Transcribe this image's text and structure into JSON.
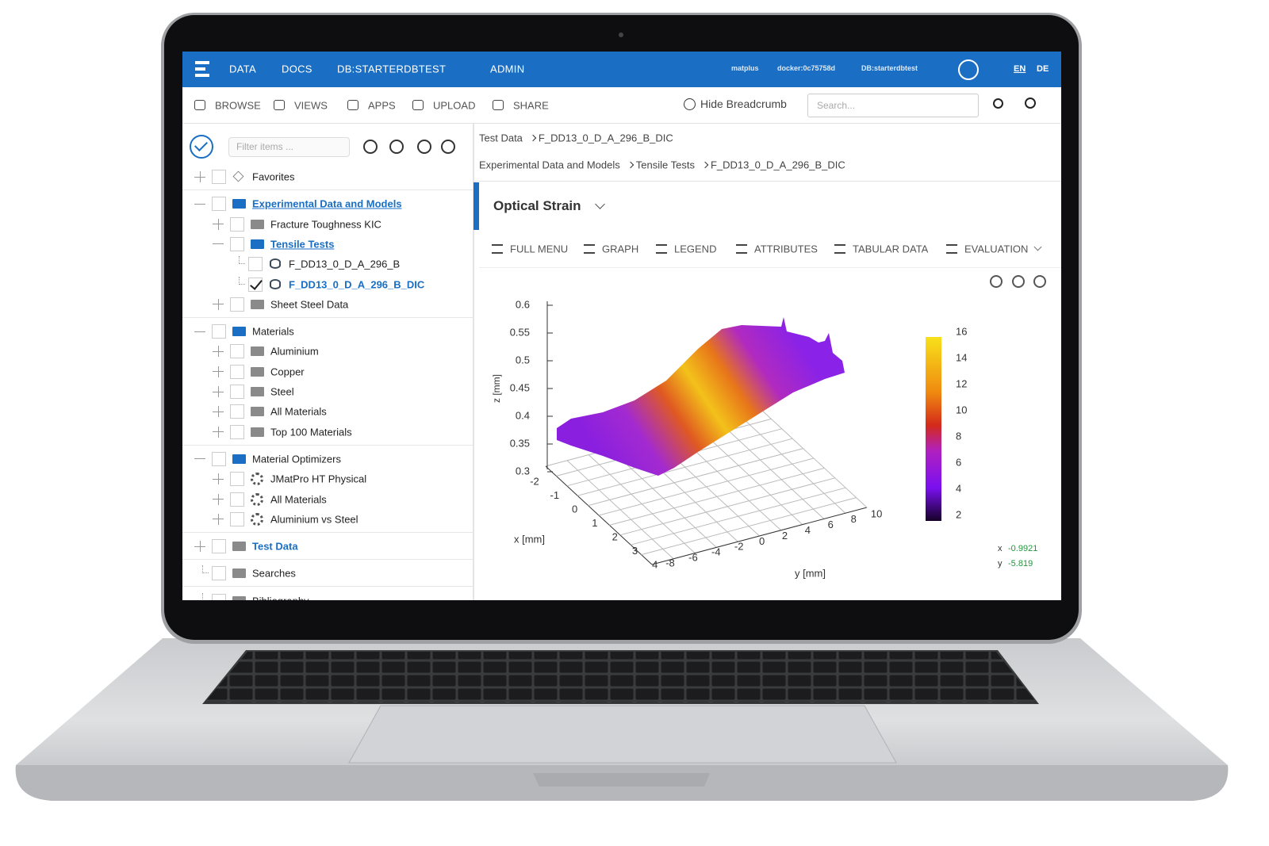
{
  "nav": {
    "items": [
      "DATA",
      "DOCS",
      "DB:STARTERDBTEST",
      "ADMIN"
    ],
    "info": [
      "matplus",
      "docker:0c75758d",
      "DB:starterdbtest"
    ],
    "langs": [
      "EN",
      "DE"
    ]
  },
  "toolbar": {
    "items": [
      "BROWSE",
      "VIEWS",
      "APPS",
      "UPLOAD",
      "SHARE"
    ],
    "hide_breadcrumb": "Hide Breadcrumb",
    "search_placeholder": "Search..."
  },
  "sidebar": {
    "filter_placeholder": "Filter items ...",
    "groups": [
      [
        {
          "label": "Favorites",
          "depth": 0,
          "icon": "star",
          "toggle": "collapsed"
        }
      ],
      [
        {
          "label": "Experimental Data and Models",
          "depth": 0,
          "icon": "folder-open",
          "toggle": "expanded",
          "style": "link"
        },
        {
          "label": "Fracture Toughness KIC",
          "depth": 1,
          "icon": "folder",
          "toggle": "collapsed"
        },
        {
          "label": "Tensile Tests",
          "depth": 1,
          "icon": "folder-open",
          "toggle": "expanded",
          "style": "link"
        },
        {
          "label": "F_DD13_0_D_A_296_B",
          "depth": 2,
          "icon": "dataset",
          "toggle": "none"
        },
        {
          "label": "F_DD13_0_D_A_296_B_DIC",
          "depth": 2,
          "icon": "dataset",
          "toggle": "none",
          "style": "selected",
          "checked": true
        },
        {
          "label": "Sheet Steel Data",
          "depth": 1,
          "icon": "folder",
          "toggle": "collapsed"
        }
      ],
      [
        {
          "label": "Materials",
          "depth": 0,
          "icon": "folder-open",
          "toggle": "expanded"
        },
        {
          "label": "Aluminium",
          "depth": 1,
          "icon": "folder",
          "toggle": "collapsed"
        },
        {
          "label": "Copper",
          "depth": 1,
          "icon": "folder",
          "toggle": "collapsed"
        },
        {
          "label": "Steel",
          "depth": 1,
          "icon": "folder",
          "toggle": "collapsed"
        },
        {
          "label": "All Materials",
          "depth": 1,
          "icon": "folder",
          "toggle": "collapsed"
        },
        {
          "label": "Top 100 Materials",
          "depth": 1,
          "icon": "folder",
          "toggle": "collapsed"
        }
      ],
      [
        {
          "label": "Material Optimizers",
          "depth": 0,
          "icon": "folder-open",
          "toggle": "expanded"
        },
        {
          "label": "JMatPro HT Physical",
          "depth": 1,
          "icon": "app",
          "toggle": "collapsed"
        },
        {
          "label": "All Materials",
          "depth": 1,
          "icon": "app",
          "toggle": "collapsed"
        },
        {
          "label": "Aluminium vs Steel",
          "depth": 1,
          "icon": "app",
          "toggle": "collapsed"
        }
      ],
      [
        {
          "label": "Test Data",
          "depth": 0,
          "icon": "folder",
          "toggle": "collapsed",
          "style": "link-plain"
        }
      ],
      [
        {
          "label": "Searches",
          "depth": 0,
          "icon": "folder",
          "toggle": "none"
        }
      ],
      [
        {
          "label": "Bibliography",
          "depth": 0,
          "icon": "folder",
          "toggle": "none"
        }
      ]
    ]
  },
  "breadcrumbs": [
    [
      "Test Data",
      "F_DD13_0_D_A_296_B_DIC"
    ],
    [
      "Experimental Data and Models",
      "Tensile Tests",
      "F_DD13_0_D_A_296_B_DIC"
    ]
  ],
  "panel": {
    "title": "Optical Strain",
    "tabs": [
      "FULL MENU",
      "GRAPH",
      "LEGEND",
      "ATTRIBUTES",
      "TABULAR DATA",
      "EVALUATION"
    ]
  },
  "plot": {
    "z_label": "z [mm]",
    "x_label": "x [mm]",
    "y_label": "y [mm]",
    "z_ticks": [
      0.6,
      0.55,
      0.5,
      0.45,
      0.4,
      0.35,
      0.3
    ],
    "x_ticks": [
      -2,
      -1,
      0,
      1,
      2,
      3,
      4
    ],
    "y_ticks": [
      -8,
      -6,
      -4,
      -2,
      0,
      2,
      4,
      6,
      8,
      10
    ],
    "colorbar_ticks": [
      16,
      14,
      12,
      10,
      8,
      6,
      4,
      2
    ],
    "cursor": [
      {
        "axis": "x",
        "value": "-0.9921"
      },
      {
        "axis": "y",
        "value": "-5.819"
      }
    ]
  }
}
